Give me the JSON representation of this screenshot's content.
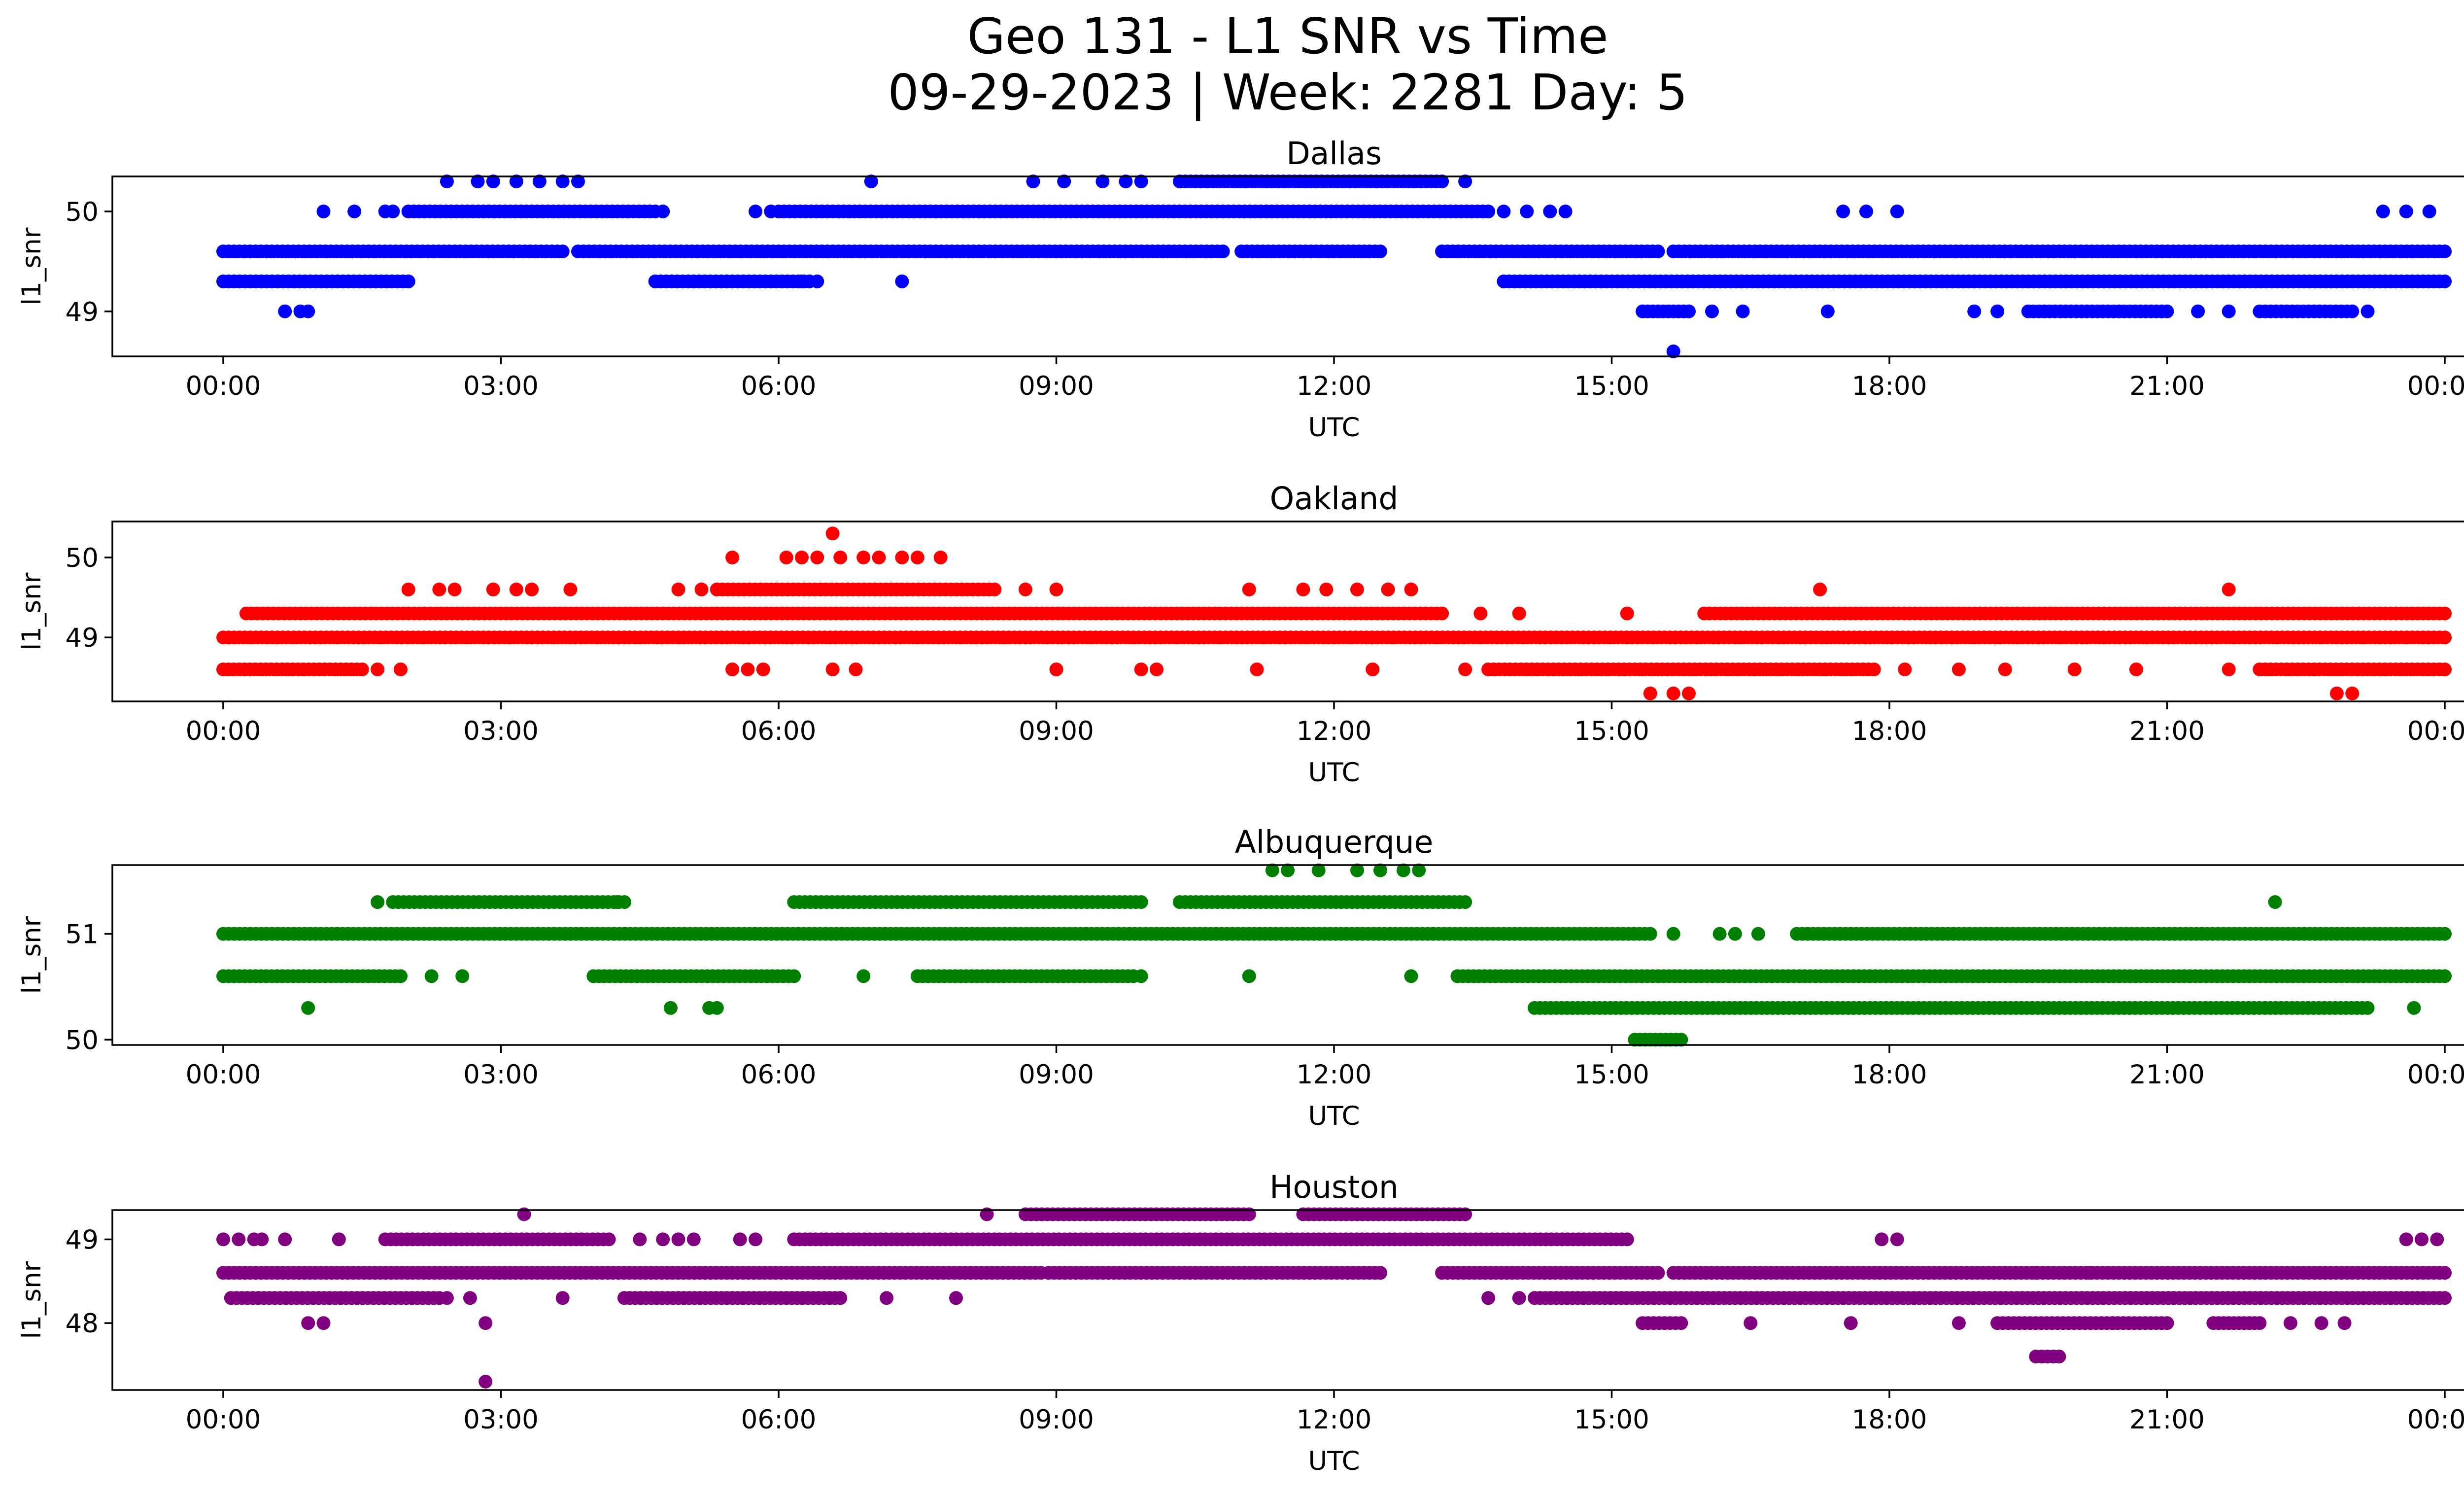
{
  "figure": {
    "title_line1": "Geo 131 - L1 SNR vs Time",
    "title_line2": "09-29-2023 | Week: 2281 Day: 5"
  },
  "chart_data": [
    {
      "type": "scatter",
      "title": "Dallas",
      "xlabel": "UTC",
      "ylabel": "l1_snr",
      "color": "#0000ff",
      "xlim": [
        "00:00",
        "24:00"
      ],
      "ylim": [
        48.55,
        50.35
      ],
      "xticks": [
        "00:00",
        "03:00",
        "06:00",
        "09:00",
        "12:00",
        "15:00",
        "18:00",
        "21:00",
        "00:00"
      ],
      "yticks": [
        49,
        50
      ],
      "ytick_labels": [
        "49",
        "50"
      ],
      "bands": [
        {
          "y": 49.6,
          "ranges": [
            [
              "00:00",
              "03:40"
            ],
            [
              "03:50",
              "10:48"
            ],
            [
              "11:00",
              "12:30"
            ],
            [
              "13:10",
              "15:30"
            ],
            [
              "15:40",
              "24:00"
            ]
          ]
        },
        {
          "y": 49.3,
          "ranges": [
            [
              "00:00",
              "02:00"
            ],
            [
              "04:40",
              "06:20"
            ],
            [
              "13:50",
              "24:00"
            ]
          ]
        },
        {
          "y": 50.0,
          "ranges": [
            [
              "02:00",
              "04:40"
            ],
            [
              "06:00",
              "13:40"
            ]
          ]
        },
        {
          "y": 50.3,
          "ranges": [
            [
              "10:20",
              "13:10"
            ]
          ]
        },
        {
          "y": 49.0,
          "ranges": [
            [
              "15:20",
              "15:50"
            ],
            [
              "19:30",
              "21:00"
            ],
            [
              "22:00",
              "23:00"
            ]
          ]
        }
      ],
      "points": [
        {
          "x": "00:40",
          "y": 49.0
        },
        {
          "x": "00:50",
          "y": 49.0
        },
        {
          "x": "00:55",
          "y": 49.0
        },
        {
          "x": "01:05",
          "y": 50.0
        },
        {
          "x": "01:25",
          "y": 50.0
        },
        {
          "x": "01:45",
          "y": 50.0
        },
        {
          "x": "01:50",
          "y": 50.0
        },
        {
          "x": "02:25",
          "y": 50.3
        },
        {
          "x": "02:45",
          "y": 50.3
        },
        {
          "x": "02:55",
          "y": 50.3
        },
        {
          "x": "03:10",
          "y": 50.3
        },
        {
          "x": "03:25",
          "y": 50.3
        },
        {
          "x": "03:40",
          "y": 50.3
        },
        {
          "x": "03:50",
          "y": 50.3
        },
        {
          "x": "04:45",
          "y": 50.0
        },
        {
          "x": "05:45",
          "y": 50.0
        },
        {
          "x": "05:55",
          "y": 50.0
        },
        {
          "x": "06:15",
          "y": 49.3
        },
        {
          "x": "06:25",
          "y": 49.3
        },
        {
          "x": "07:20",
          "y": 49.3
        },
        {
          "x": "07:00",
          "y": 50.3
        },
        {
          "x": "08:45",
          "y": 50.3
        },
        {
          "x": "09:05",
          "y": 50.3
        },
        {
          "x": "09:30",
          "y": 50.3
        },
        {
          "x": "09:45",
          "y": 50.3
        },
        {
          "x": "09:55",
          "y": 50.3
        },
        {
          "x": "13:25",
          "y": 50.3
        },
        {
          "x": "13:50",
          "y": 50.0
        },
        {
          "x": "14:05",
          "y": 50.0
        },
        {
          "x": "14:20",
          "y": 50.0
        },
        {
          "x": "14:30",
          "y": 50.0
        },
        {
          "x": "15:40",
          "y": 48.6
        },
        {
          "x": "16:05",
          "y": 49.0
        },
        {
          "x": "16:25",
          "y": 49.0
        },
        {
          "x": "17:20",
          "y": 49.0
        },
        {
          "x": "17:30",
          "y": 50.0
        },
        {
          "x": "17:45",
          "y": 50.0
        },
        {
          "x": "18:05",
          "y": 50.0
        },
        {
          "x": "18:55",
          "y": 49.0
        },
        {
          "x": "19:10",
          "y": 49.0
        },
        {
          "x": "21:20",
          "y": 49.0
        },
        {
          "x": "21:40",
          "y": 49.0
        },
        {
          "x": "23:10",
          "y": 49.0
        },
        {
          "x": "23:20",
          "y": 50.0
        },
        {
          "x": "23:35",
          "y": 50.0
        },
        {
          "x": "23:50",
          "y": 50.0
        }
      ]
    },
    {
      "type": "scatter",
      "title": "Oakland",
      "xlabel": "UTC",
      "ylabel": "l1_snr",
      "color": "#ff0000",
      "xlim": [
        "00:00",
        "24:00"
      ],
      "ylim": [
        48.2,
        50.45
      ],
      "xticks": [
        "00:00",
        "03:00",
        "06:00",
        "09:00",
        "12:00",
        "15:00",
        "18:00",
        "21:00",
        "00:00"
      ],
      "yticks": [
        49,
        50
      ],
      "ytick_labels": [
        "49",
        "50"
      ],
      "bands": [
        {
          "y": 49.0,
          "ranges": [
            [
              "00:00",
              "24:00"
            ]
          ]
        },
        {
          "y": 49.3,
          "ranges": [
            [
              "00:15",
              "13:10"
            ],
            [
              "16:00",
              "24:00"
            ]
          ]
        },
        {
          "y": 48.6,
          "ranges": [
            [
              "00:00",
              "01:30"
            ],
            [
              "13:40",
              "17:50"
            ],
            [
              "22:00",
              "24:00"
            ]
          ]
        },
        {
          "y": 49.6,
          "ranges": [
            [
              "05:20",
              "08:20"
            ]
          ]
        }
      ],
      "points": [
        {
          "x": "01:40",
          "y": 48.6
        },
        {
          "x": "01:55",
          "y": 48.6
        },
        {
          "x": "02:00",
          "y": 49.6
        },
        {
          "x": "02:20",
          "y": 49.6
        },
        {
          "x": "02:30",
          "y": 49.6
        },
        {
          "x": "02:55",
          "y": 49.6
        },
        {
          "x": "03:10",
          "y": 49.6
        },
        {
          "x": "03:20",
          "y": 49.6
        },
        {
          "x": "03:45",
          "y": 49.6
        },
        {
          "x": "04:55",
          "y": 49.6
        },
        {
          "x": "05:10",
          "y": 49.6
        },
        {
          "x": "05:30",
          "y": 48.6
        },
        {
          "x": "05:40",
          "y": 48.6
        },
        {
          "x": "05:50",
          "y": 48.6
        },
        {
          "x": "06:35",
          "y": 48.6
        },
        {
          "x": "06:50",
          "y": 48.6
        },
        {
          "x": "05:30",
          "y": 50.0
        },
        {
          "x": "06:05",
          "y": 50.0
        },
        {
          "x": "06:15",
          "y": 50.0
        },
        {
          "x": "06:25",
          "y": 50.0
        },
        {
          "x": "06:40",
          "y": 50.0
        },
        {
          "x": "06:55",
          "y": 50.0
        },
        {
          "x": "06:35",
          "y": 50.3
        },
        {
          "x": "07:05",
          "y": 50.0
        },
        {
          "x": "07:20",
          "y": 50.0
        },
        {
          "x": "07:30",
          "y": 50.0
        },
        {
          "x": "07:45",
          "y": 50.0
        },
        {
          "x": "08:40",
          "y": 49.6
        },
        {
          "x": "09:00",
          "y": 49.6
        },
        {
          "x": "09:00",
          "y": 48.6
        },
        {
          "x": "09:55",
          "y": 48.6
        },
        {
          "x": "10:05",
          "y": 48.6
        },
        {
          "x": "11:05",
          "y": 49.6
        },
        {
          "x": "11:10",
          "y": 48.6
        },
        {
          "x": "11:40",
          "y": 49.6
        },
        {
          "x": "11:55",
          "y": 49.6
        },
        {
          "x": "12:15",
          "y": 49.6
        },
        {
          "x": "12:25",
          "y": 48.6
        },
        {
          "x": "12:35",
          "y": 49.6
        },
        {
          "x": "12:50",
          "y": 49.6
        },
        {
          "x": "13:35",
          "y": 49.3
        },
        {
          "x": "13:25",
          "y": 48.6
        },
        {
          "x": "14:00",
          "y": 49.3
        },
        {
          "x": "15:10",
          "y": 49.3
        },
        {
          "x": "15:25",
          "y": 48.3
        },
        {
          "x": "15:40",
          "y": 48.3
        },
        {
          "x": "15:50",
          "y": 48.3
        },
        {
          "x": "17:15",
          "y": 49.6
        },
        {
          "x": "18:10",
          "y": 48.6
        },
        {
          "x": "18:45",
          "y": 48.6
        },
        {
          "x": "19:15",
          "y": 48.6
        },
        {
          "x": "20:00",
          "y": 48.6
        },
        {
          "x": "20:40",
          "y": 48.6
        },
        {
          "x": "21:40",
          "y": 48.6
        },
        {
          "x": "21:40",
          "y": 49.6
        },
        {
          "x": "22:50",
          "y": 48.3
        },
        {
          "x": "23:00",
          "y": 48.3
        }
      ]
    },
    {
      "type": "scatter",
      "title": "Albuquerque",
      "xlabel": "UTC",
      "ylabel": "l1_snr",
      "color": "#008000",
      "xlim": [
        "00:00",
        "24:00"
      ],
      "ylim": [
        49.95,
        51.65
      ],
      "xticks": [
        "00:00",
        "03:00",
        "06:00",
        "09:00",
        "12:00",
        "15:00",
        "18:00",
        "21:00",
        "00:00"
      ],
      "yticks": [
        50,
        51
      ],
      "ytick_labels": [
        "50",
        "51"
      ],
      "bands": [
        {
          "y": 51.0,
          "ranges": [
            [
              "00:00",
              "15:25"
            ],
            [
              "17:00",
              "24:00"
            ]
          ]
        },
        {
          "y": 50.6,
          "ranges": [
            [
              "00:00",
              "01:55"
            ],
            [
              "04:00",
              "06:10"
            ],
            [
              "07:30",
              "09:50"
            ],
            [
              "13:20",
              "24:00"
            ]
          ]
        },
        {
          "y": 51.3,
          "ranges": [
            [
              "01:50",
              "04:20"
            ],
            [
              "06:10",
              "09:55"
            ],
            [
              "10:20",
              "13:25"
            ]
          ]
        },
        {
          "y": 50.3,
          "ranges": [
            [
              "14:10",
              "23:10"
            ]
          ]
        },
        {
          "y": 50.0,
          "ranges": [
            [
              "15:15",
              "15:45"
            ]
          ]
        }
      ],
      "points": [
        {
          "x": "00:55",
          "y": 50.3
        },
        {
          "x": "01:40",
          "y": 51.3
        },
        {
          "x": "02:15",
          "y": 50.6
        },
        {
          "x": "02:35",
          "y": 50.6
        },
        {
          "x": "04:15",
          "y": 51.3
        },
        {
          "x": "04:50",
          "y": 50.3
        },
        {
          "x": "05:15",
          "y": 50.3
        },
        {
          "x": "05:20",
          "y": 50.3
        },
        {
          "x": "06:55",
          "y": 50.6
        },
        {
          "x": "08:40",
          "y": 50.6
        },
        {
          "x": "09:55",
          "y": 50.6
        },
        {
          "x": "11:05",
          "y": 50.6
        },
        {
          "x": "11:20",
          "y": 51.6
        },
        {
          "x": "11:30",
          "y": 51.6
        },
        {
          "x": "11:50",
          "y": 51.6
        },
        {
          "x": "12:15",
          "y": 51.6
        },
        {
          "x": "12:30",
          "y": 51.6
        },
        {
          "x": "12:45",
          "y": 51.6
        },
        {
          "x": "12:55",
          "y": 51.6
        },
        {
          "x": "12:50",
          "y": 50.6
        },
        {
          "x": "15:40",
          "y": 51.0
        },
        {
          "x": "16:10",
          "y": 51.0
        },
        {
          "x": "16:20",
          "y": 51.0
        },
        {
          "x": "16:35",
          "y": 51.0
        },
        {
          "x": "22:10",
          "y": 51.3
        },
        {
          "x": "23:40",
          "y": 50.3
        }
      ]
    },
    {
      "type": "scatter",
      "title": "Houston",
      "xlabel": "UTC",
      "ylabel": "l1_snr",
      "color": "#800080",
      "xlim": [
        "00:00",
        "24:00"
      ],
      "ylim": [
        47.2,
        49.35
      ],
      "xticks": [
        "00:00",
        "03:00",
        "06:00",
        "09:00",
        "12:00",
        "15:00",
        "18:00",
        "21:00",
        "00:00"
      ],
      "yticks": [
        48,
        49
      ],
      "ytick_labels": [
        "48",
        "49"
      ],
      "bands": [
        {
          "y": 48.6,
          "ranges": [
            [
              "00:00",
              "08:50"
            ],
            [
              "08:55",
              "12:30"
            ],
            [
              "13:10",
              "15:30"
            ],
            [
              "15:40",
              "24:00"
            ]
          ]
        },
        {
          "y": 48.3,
          "ranges": [
            [
              "00:05",
              "02:20"
            ],
            [
              "04:20",
              "06:40"
            ],
            [
              "14:10",
              "24:00"
            ]
          ]
        },
        {
          "y": 49.0,
          "ranges": [
            [
              "01:45",
              "04:10"
            ],
            [
              "06:10",
              "15:10"
            ]
          ]
        },
        {
          "y": 49.3,
          "ranges": [
            [
              "08:40",
              "11:05"
            ],
            [
              "11:40",
              "13:25"
            ]
          ]
        },
        {
          "y": 48.0,
          "ranges": [
            [
              "15:20",
              "15:45"
            ],
            [
              "19:10",
              "21:00"
            ],
            [
              "21:30",
              "22:00"
            ]
          ]
        },
        {
          "y": 47.6,
          "ranges": [
            [
              "19:35",
              "19:50"
            ]
          ]
        }
      ],
      "points": [
        {
          "x": "00:00",
          "y": 49.0
        },
        {
          "x": "00:10",
          "y": 49.0
        },
        {
          "x": "00:20",
          "y": 49.0
        },
        {
          "x": "00:25",
          "y": 49.0
        },
        {
          "x": "00:40",
          "y": 49.0
        },
        {
          "x": "01:15",
          "y": 49.0
        },
        {
          "x": "00:55",
          "y": 48.0
        },
        {
          "x": "01:05",
          "y": 48.0
        },
        {
          "x": "02:25",
          "y": 48.3
        },
        {
          "x": "02:40",
          "y": 48.3
        },
        {
          "x": "02:50",
          "y": 48.0
        },
        {
          "x": "02:50",
          "y": 47.3
        },
        {
          "x": "03:15",
          "y": 49.3
        },
        {
          "x": "03:40",
          "y": 48.3
        },
        {
          "x": "04:30",
          "y": 49.0
        },
        {
          "x": "04:45",
          "y": 49.0
        },
        {
          "x": "04:55",
          "y": 49.0
        },
        {
          "x": "05:05",
          "y": 49.0
        },
        {
          "x": "05:35",
          "y": 49.0
        },
        {
          "x": "05:45",
          "y": 49.0
        },
        {
          "x": "07:10",
          "y": 48.3
        },
        {
          "x": "07:55",
          "y": 48.3
        },
        {
          "x": "08:15",
          "y": 49.3
        },
        {
          "x": "12:30",
          "y": 48.6
        },
        {
          "x": "13:40",
          "y": 48.3
        },
        {
          "x": "14:00",
          "y": 48.3
        },
        {
          "x": "16:30",
          "y": 48.0
        },
        {
          "x": "17:35",
          "y": 48.0
        },
        {
          "x": "17:55",
          "y": 49.0
        },
        {
          "x": "18:05",
          "y": 49.0
        },
        {
          "x": "18:45",
          "y": 48.0
        },
        {
          "x": "19:15",
          "y": 48.6
        },
        {
          "x": "19:35",
          "y": 48.6
        },
        {
          "x": "20:10",
          "y": 48.6
        },
        {
          "x": "20:25",
          "y": 48.0
        },
        {
          "x": "22:20",
          "y": 48.0
        },
        {
          "x": "22:40",
          "y": 48.0
        },
        {
          "x": "22:55",
          "y": 48.0
        },
        {
          "x": "23:35",
          "y": 49.0
        },
        {
          "x": "23:45",
          "y": 49.0
        },
        {
          "x": "23:55",
          "y": 49.0
        }
      ]
    }
  ]
}
